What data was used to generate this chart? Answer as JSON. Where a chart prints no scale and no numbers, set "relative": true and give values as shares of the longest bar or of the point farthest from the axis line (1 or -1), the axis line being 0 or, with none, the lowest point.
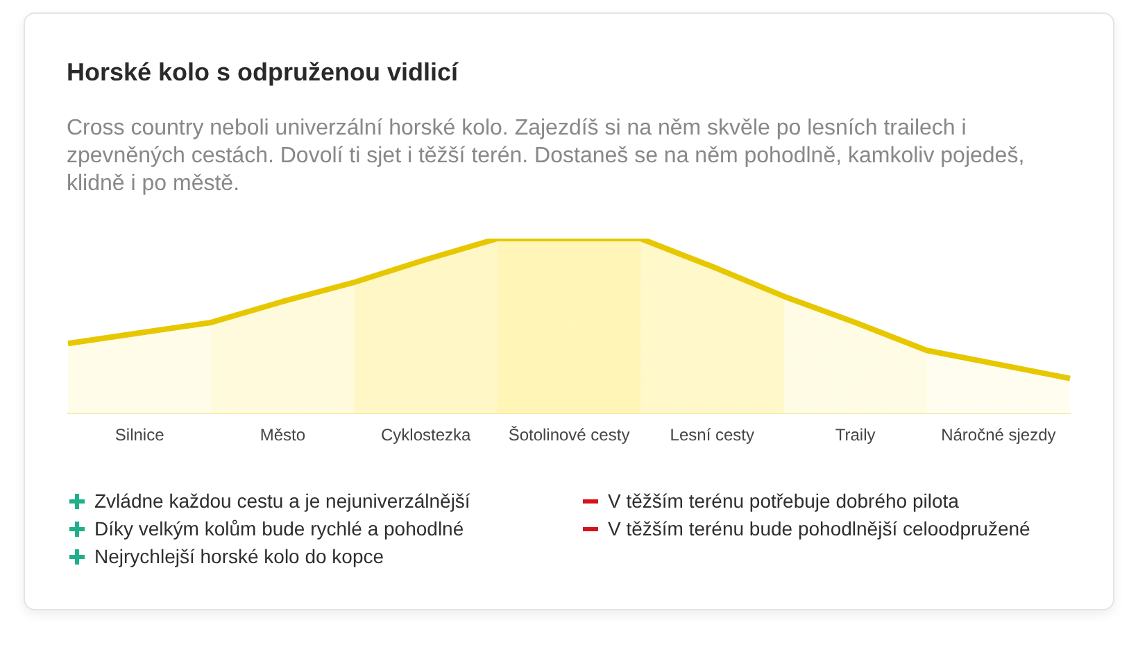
{
  "chart_data": {
    "type": "area",
    "title": "Horské kolo s odpruženou vidlicí",
    "subtitle": "Cross country neboli univerzální horské kolo. Zajezdíš si na něm skvěle po lesních trailech i zpevněných cestách. Dovolí ti sjet i těžší terén. Dostaneš se na něm pohodlně, kamkoliv pojedeš, klidně i po městě.",
    "categories": [
      null,
      "Silnice",
      null,
      "Město",
      null,
      "Cyklostezka",
      null,
      "Šotolinové cesty",
      null,
      "Lesní cesty",
      null,
      "Traily",
      null,
      "Náročné sjezdy",
      null
    ],
    "series": [
      {
        "color": "#e6c700",
        "values": [
          0.4,
          0.46,
          0.52,
          0.64,
          0.75,
          0.88,
          1,
          1,
          1,
          0.84,
          0.67,
          0.52,
          0.36,
          0.28,
          0.2
        ]
      }
    ],
    "relative": true,
    "annotations": [
      "Zvládne každou cestu a je nejuniverzálnější",
      "Díky velkým kolům bude rychlé a pohodlné",
      "Nejrychlejší horské kolo do kopce",
      "V těžším terénu potřebuje dobrého pilota",
      "V těžším terénu bude pohodlnější celoodpružené"
    ],
    "grid": false,
    "legend": false
  }
}
